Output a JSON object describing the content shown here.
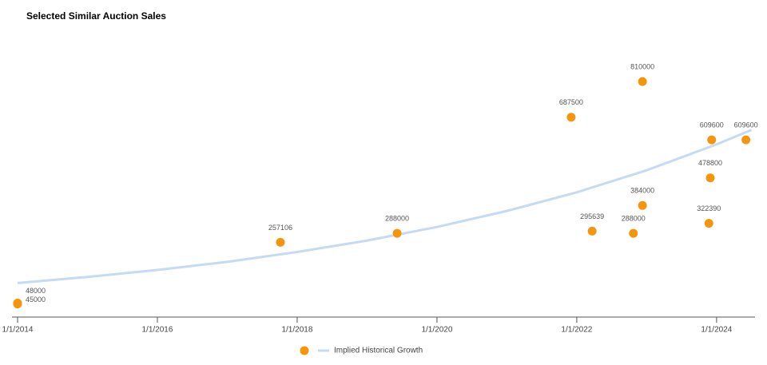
{
  "chart_data": {
    "type": "scatter",
    "title": "Selected Similar Auction Sales",
    "xlim": [
      2013.92,
      2024.55
    ],
    "xticks": [
      {
        "value": 2014,
        "label": "1/1/2014"
      },
      {
        "value": 2016,
        "label": "1/1/2016"
      },
      {
        "value": 2018,
        "label": "1/1/2018"
      },
      {
        "value": 2020,
        "label": "1/1/2020"
      },
      {
        "value": 2022,
        "label": "1/1/2022"
      },
      {
        "value": 2024,
        "label": "1/1/2024"
      }
    ],
    "ylim": [
      0,
      1000000
    ],
    "series": [
      {
        "color": "#f5950b",
        "x": [
          2014.0,
          2014.0,
          2017.76,
          2019.43,
          2021.92,
          2022.22,
          2022.81,
          2022.94,
          2022.94,
          2023.89,
          2023.91,
          2023.93,
          2024.42
        ],
        "values": [
          48000,
          45000,
          257106,
          288000,
          687500,
          295639,
          288000,
          384000,
          810000,
          322390,
          478800,
          609600,
          609600
        ]
      },
      {
        "type": "line",
        "name": "Implied Historical Growth",
        "color": "#c5daf3",
        "x": [
          2014,
          2015,
          2016,
          2017,
          2018,
          2019,
          2020,
          2021,
          2022,
          2023,
          2024,
          2024.5
        ],
        "values": [
          117000,
          138000,
          162000,
          190000,
          224000,
          263000,
          310000,
          365000,
          429000,
          505000,
          594000,
          644000
        ]
      }
    ]
  }
}
